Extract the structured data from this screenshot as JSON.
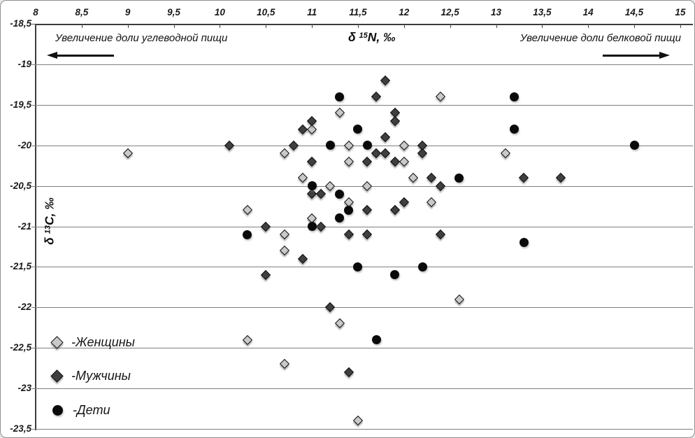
{
  "chart_data": {
    "type": "scatter",
    "title": "",
    "x_label": {
      "delta": "δ ",
      "sup": "15",
      "rest": "N, ‰"
    },
    "y_label": {
      "delta": "δ ",
      "sup": "13",
      "rest": "C, ‰"
    },
    "xlim": [
      8,
      15
    ],
    "ylim": [
      -23.5,
      -18.5
    ],
    "grid": "horizontal",
    "x_ticks": [
      "8",
      "8,5",
      "9",
      "9,5",
      "10",
      "10,5",
      "11",
      "11,5",
      "12",
      "12,5",
      "13",
      "13,5",
      "14",
      "14,5",
      "15"
    ],
    "x_tick_values": [
      8,
      8.5,
      9,
      9.5,
      10,
      10.5,
      11,
      11.5,
      12,
      12.5,
      13,
      13.5,
      14,
      14.5,
      15
    ],
    "y_ticks": [
      "-18,5",
      "-19",
      "-19,5",
      "-20",
      "-20,5",
      "-21",
      "-21,5",
      "-22",
      "-22,5",
      "-23",
      "-23,5"
    ],
    "y_tick_values": [
      -18.5,
      -19,
      -19.5,
      -20,
      -20.5,
      -21,
      -21.5,
      -22,
      -22.5,
      -23,
      -23.5
    ],
    "annotations": {
      "left": {
        "text": "Увеличение доли углеводной пищи",
        "arrow": "left"
      },
      "right": {
        "text": "Увеличение доли белковой пищи",
        "arrow": "right"
      }
    },
    "legend": [
      {
        "key": "women",
        "label": "-Женщины"
      },
      {
        "key": "men",
        "label": "-Мужчины"
      },
      {
        "key": "children",
        "label": "-Дети"
      }
    ],
    "colors": {
      "women_fill": "#c9c9c9",
      "men_fill": "#3f3f3f",
      "children_fill": "#0a0a0a",
      "gridline": "#7f7f7f"
    },
    "series": [
      {
        "name": "Женщины",
        "key": "women",
        "marker": "diamond",
        "color": "#c9c9c9",
        "points": [
          [
            12.4,
            -19.4
          ],
          [
            11.3,
            -19.6
          ],
          [
            11.0,
            -19.8
          ],
          [
            9.0,
            -20.1
          ],
          [
            10.7,
            -20.1
          ],
          [
            11.4,
            -20.0
          ],
          [
            12.0,
            -20.0
          ],
          [
            13.1,
            -20.1
          ],
          [
            11.4,
            -20.2
          ],
          [
            12.0,
            -20.2
          ],
          [
            10.9,
            -20.4
          ],
          [
            12.1,
            -20.4
          ],
          [
            11.2,
            -20.5
          ],
          [
            11.6,
            -20.5
          ],
          [
            11.4,
            -20.7
          ],
          [
            12.3,
            -20.7
          ],
          [
            10.3,
            -20.8
          ],
          [
            11.0,
            -20.9
          ],
          [
            10.7,
            -21.1
          ],
          [
            10.7,
            -21.3
          ],
          [
            12.6,
            -21.9
          ],
          [
            11.3,
            -22.2
          ],
          [
            10.3,
            -22.4
          ],
          [
            10.7,
            -22.7
          ],
          [
            11.5,
            -23.4
          ]
        ]
      },
      {
        "name": "Мужчины",
        "key": "men",
        "marker": "diamond",
        "color": "#3f3f3f",
        "points": [
          [
            11.8,
            -19.2
          ],
          [
            11.7,
            -19.4
          ],
          [
            11.9,
            -19.6
          ],
          [
            11.0,
            -19.7
          ],
          [
            11.9,
            -19.7
          ],
          [
            10.9,
            -19.8
          ],
          [
            11.8,
            -19.9
          ],
          [
            10.1,
            -20.0
          ],
          [
            10.8,
            -20.0
          ],
          [
            12.2,
            -20.0
          ],
          [
            11.7,
            -20.1
          ],
          [
            11.8,
            -20.1
          ],
          [
            12.2,
            -20.1
          ],
          [
            11.0,
            -20.2
          ],
          [
            11.6,
            -20.2
          ],
          [
            11.9,
            -20.2
          ],
          [
            12.3,
            -20.4
          ],
          [
            13.3,
            -20.4
          ],
          [
            13.7,
            -20.4
          ],
          [
            12.4,
            -20.5
          ],
          [
            11.0,
            -20.6
          ],
          [
            11.1,
            -20.6
          ],
          [
            12.0,
            -20.7
          ],
          [
            11.6,
            -20.8
          ],
          [
            11.9,
            -20.8
          ],
          [
            10.5,
            -21.0
          ],
          [
            11.1,
            -21.0
          ],
          [
            11.4,
            -21.1
          ],
          [
            11.6,
            -21.1
          ],
          [
            12.4,
            -21.1
          ],
          [
            10.9,
            -21.4
          ],
          [
            10.5,
            -21.6
          ],
          [
            11.2,
            -22.0
          ],
          [
            11.4,
            -22.8
          ]
        ]
      },
      {
        "name": "Дети",
        "key": "children",
        "marker": "circle",
        "color": "#0a0a0a",
        "points": [
          [
            11.3,
            -19.4
          ],
          [
            13.2,
            -19.4
          ],
          [
            11.5,
            -19.8
          ],
          [
            13.2,
            -19.8
          ],
          [
            11.2,
            -20.0
          ],
          [
            11.6,
            -20.0
          ],
          [
            14.5,
            -20.0
          ],
          [
            12.6,
            -20.4
          ],
          [
            11.0,
            -20.5
          ],
          [
            11.3,
            -20.6
          ],
          [
            11.4,
            -20.8
          ],
          [
            11.3,
            -20.9
          ],
          [
            11.0,
            -21.0
          ],
          [
            10.3,
            -21.1
          ],
          [
            13.3,
            -21.2
          ],
          [
            11.5,
            -21.5
          ],
          [
            12.2,
            -21.5
          ],
          [
            11.9,
            -21.6
          ],
          [
            11.7,
            -22.4
          ]
        ]
      }
    ]
  }
}
